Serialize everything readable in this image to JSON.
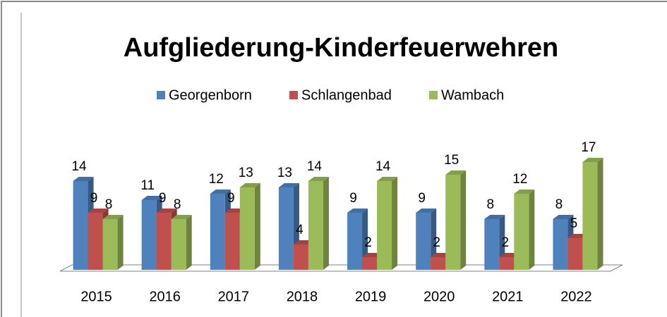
{
  "chart_data": {
    "type": "bar3d",
    "title": "Aufgliederung-Kinderfeuerwehren",
    "categories": [
      "2015",
      "2016",
      "2017",
      "2018",
      "2019",
      "2020",
      "2021",
      "2022"
    ],
    "series": [
      {
        "name": "Georgenborn",
        "color": "#4f81bd",
        "values": [
          14,
          11,
          12,
          13,
          9,
          9,
          8,
          8
        ]
      },
      {
        "name": "Schlangenbad",
        "color": "#c0504d",
        "values": [
          9,
          9,
          9,
          4,
          2,
          2,
          2,
          5
        ]
      },
      {
        "name": "Wambach",
        "color": "#9bbb59",
        "values": [
          8,
          8,
          13,
          14,
          14,
          15,
          12,
          17
        ]
      }
    ],
    "ylim": [
      0,
      20
    ],
    "legend": "top"
  }
}
